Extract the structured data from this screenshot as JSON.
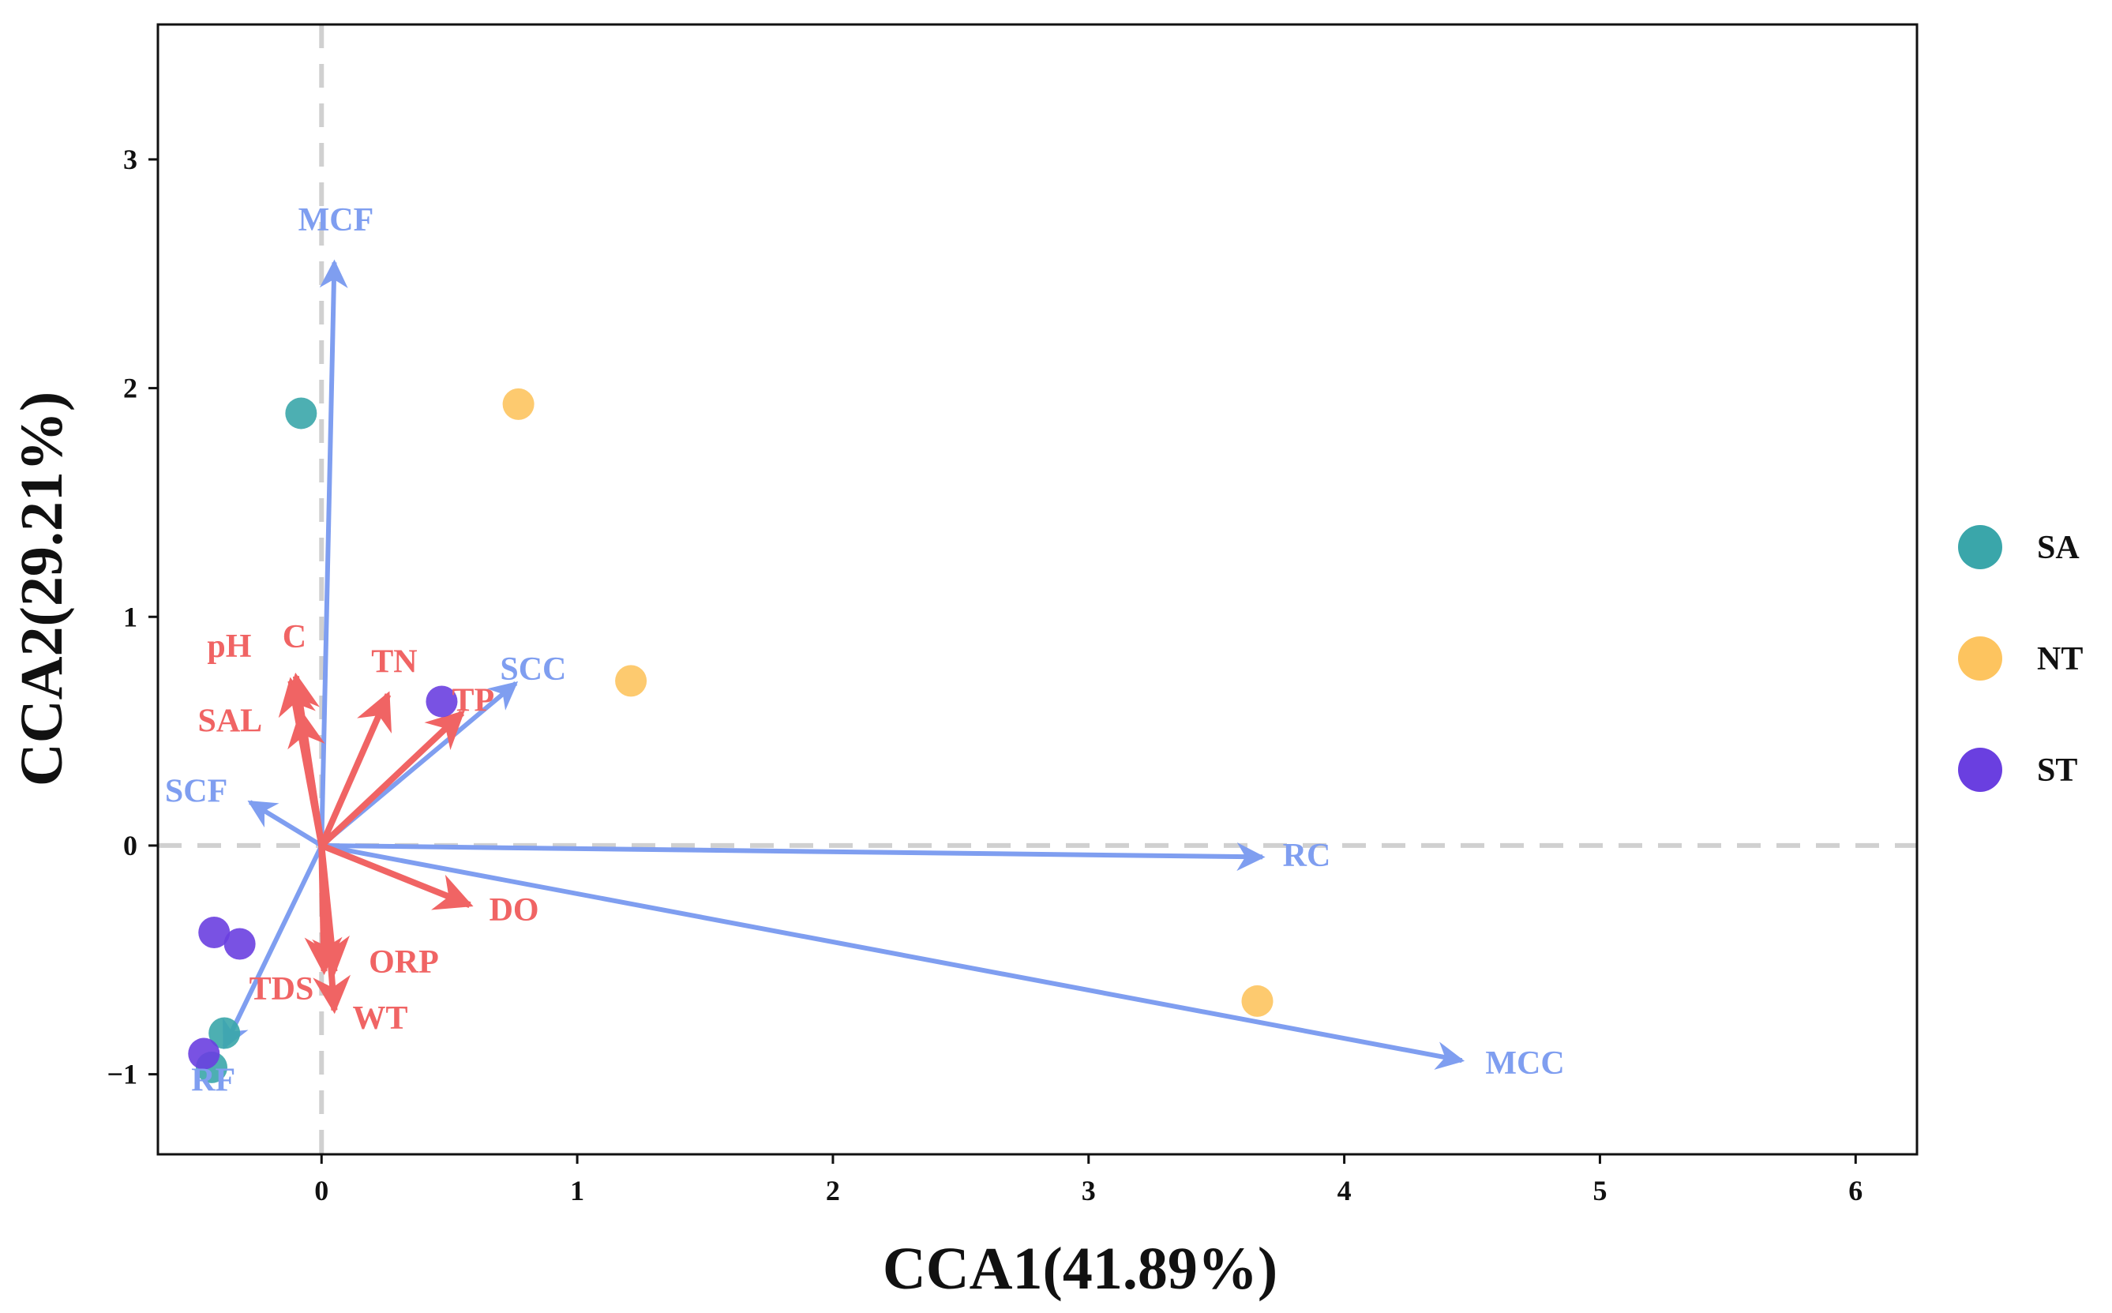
{
  "chart_data": {
    "type": "scatter",
    "title": "",
    "xlabel": "CCA1(41.89%)",
    "ylabel": "CCA2(29.21%)",
    "xlim": [
      -0.64,
      6.24
    ],
    "ylim": [
      -1.35,
      3.59
    ],
    "xticks": [
      0,
      1,
      2,
      3,
      4,
      5,
      6
    ],
    "yticks": [
      -1,
      0,
      1,
      2,
      3
    ],
    "grid": false,
    "legend_position": "right",
    "series": [
      {
        "name": "SA",
        "color": "#3aa6aa",
        "points": [
          [
            -0.08,
            1.89
          ],
          [
            -0.38,
            -0.82
          ],
          [
            -0.43,
            -0.97
          ]
        ]
      },
      {
        "name": "NT",
        "color": "#fdc45f",
        "points": [
          [
            0.77,
            1.93
          ],
          [
            1.21,
            0.72
          ],
          [
            3.66,
            -0.68
          ]
        ]
      },
      {
        "name": "ST",
        "color": "#6a3fe0",
        "points": [
          [
            0.47,
            0.63
          ],
          [
            -0.42,
            -0.38
          ],
          [
            -0.32,
            -0.43
          ],
          [
            -0.46,
            -0.91
          ]
        ]
      }
    ],
    "species_arrows": {
      "color": "#7f9ef0",
      "items": [
        {
          "label": "MCF",
          "x": 0.05,
          "y": 2.55
        },
        {
          "label": "SCC",
          "x": 0.76,
          "y": 0.71
        },
        {
          "label": "SCF",
          "x": -0.28,
          "y": 0.19
        },
        {
          "label": "RC",
          "x": 3.68,
          "y": -0.05
        },
        {
          "label": "MCC",
          "x": 4.46,
          "y": -0.94
        },
        {
          "label": "RF",
          "x": -0.38,
          "y": -0.88
        }
      ]
    },
    "env_arrows": {
      "color": "#f06464",
      "items": [
        {
          "label": "pH",
          "x": -0.12,
          "y": 0.72
        },
        {
          "label": "C",
          "x": -0.1,
          "y": 0.74
        },
        {
          "label": "SAL",
          "x": -0.08,
          "y": 0.58
        },
        {
          "label": "TN",
          "x": 0.26,
          "y": 0.66
        },
        {
          "label": "TP",
          "x": 0.55,
          "y": 0.58
        },
        {
          "label": "DO",
          "x": 0.58,
          "y": -0.26
        },
        {
          "label": "ORP",
          "x": 0.05,
          "y": -0.55
        },
        {
          "label": "TDS",
          "x": 0.01,
          "y": -0.55
        },
        {
          "label": "WT",
          "x": 0.05,
          "y": -0.72
        }
      ]
    }
  }
}
